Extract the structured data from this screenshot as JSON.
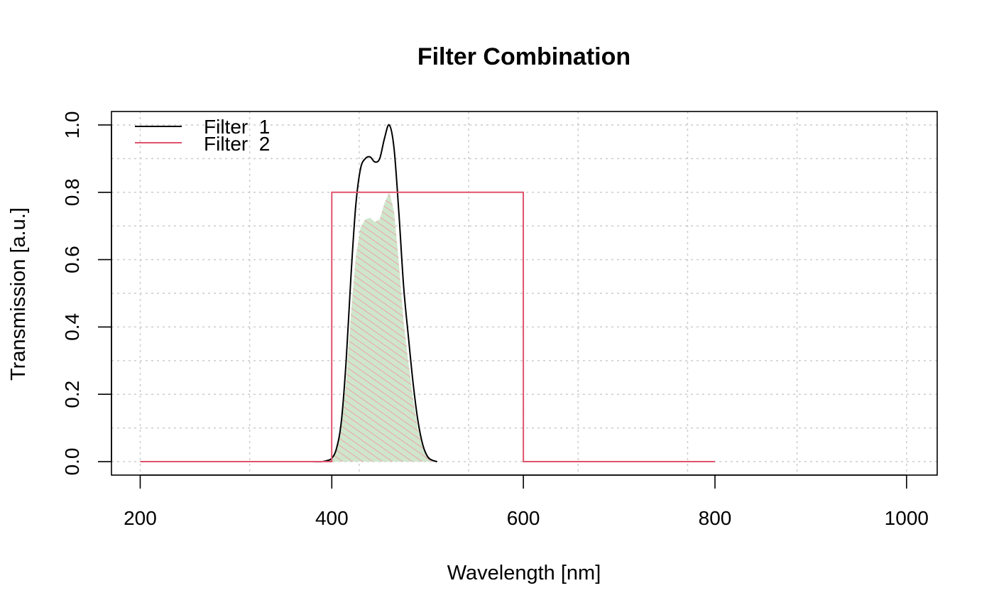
{
  "chart_data": {
    "type": "line",
    "title": "Filter Combination",
    "xlabel": "Wavelength [nm]",
    "ylabel": "Transmission [a.u.]",
    "xlim": [
      170,
      1032
    ],
    "ylim": [
      -0.04,
      1.04
    ],
    "x_ticks": [
      "200",
      "400",
      "600",
      "800",
      "1000"
    ],
    "y_ticks": [
      "0.0",
      "0.2",
      "0.4",
      "0.6",
      "0.8",
      "1.0"
    ],
    "grid": true,
    "legend_position": "top-left",
    "colors": {
      "filter1": "#000000",
      "filter2": "#DF536B",
      "fill": "#cfe6cc",
      "hatch": "#e8a9a9"
    },
    "series": [
      {
        "name": "Filter  1",
        "x": [
          380,
          390,
          395,
          400,
          405,
          410,
          415,
          420,
          425,
          430,
          435,
          440,
          445,
          450,
          455,
          460,
          465,
          470,
          475,
          480,
          485,
          490,
          495,
          500,
          505,
          510
        ],
        "y": [
          0.0,
          0.0,
          0.003,
          0.01,
          0.04,
          0.12,
          0.3,
          0.55,
          0.76,
          0.87,
          0.9,
          0.905,
          0.89,
          0.9,
          0.96,
          1.0,
          0.93,
          0.74,
          0.52,
          0.37,
          0.23,
          0.12,
          0.05,
          0.015,
          0.004,
          0.0
        ]
      },
      {
        "name": "Filter  2",
        "x": [
          200,
          399.9,
          400,
          599.9,
          600,
          800
        ],
        "y": [
          0.0,
          0.0,
          0.8,
          0.8,
          0.0,
          0.0
        ]
      }
    ],
    "combined": {
      "x": [
        395,
        400,
        405,
        410,
        415,
        420,
        425,
        430,
        435,
        440,
        445,
        450,
        455,
        460,
        465,
        470,
        475,
        480,
        485,
        490,
        495,
        500,
        505,
        510
      ],
      "y": [
        0.0,
        0.008,
        0.032,
        0.096,
        0.24,
        0.44,
        0.608,
        0.696,
        0.72,
        0.724,
        0.712,
        0.72,
        0.768,
        0.8,
        0.744,
        0.592,
        0.416,
        0.296,
        0.184,
        0.096,
        0.04,
        0.012,
        0.003,
        0.0
      ]
    }
  }
}
